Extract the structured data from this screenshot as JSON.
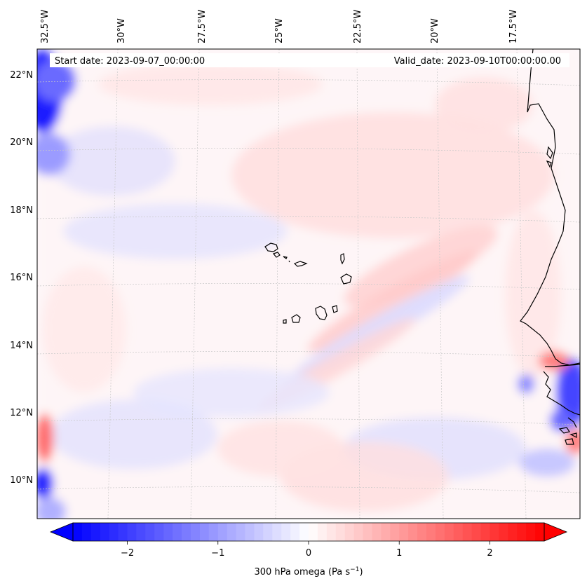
{
  "header": {
    "start_text": "Start date: 2023-09-07_00:00:00",
    "valid_text": "Valid_date: 2023-09-10T00:00:00.00"
  },
  "map": {
    "projection": "lambert-conformal",
    "lon_range_deg": [
      -33.0,
      -15.5
    ],
    "lat_range_deg": [
      8.8,
      22.7
    ],
    "field": "300 hPa omega",
    "colormap": "bwr",
    "gridlines": true
  },
  "axes": {
    "lon_ticks": [
      {
        "value": -32.5,
        "label": "32.5°W"
      },
      {
        "value": -30.0,
        "label": "30°W"
      },
      {
        "value": -27.5,
        "label": "27.5°W"
      },
      {
        "value": -25.0,
        "label": "25°W"
      },
      {
        "value": -22.5,
        "label": "22.5°W"
      },
      {
        "value": -20.0,
        "label": "20°W"
      },
      {
        "value": -17.5,
        "label": "17.5°W"
      }
    ],
    "lat_ticks": [
      {
        "value": 22,
        "label": "22°N"
      },
      {
        "value": 20,
        "label": "20°N"
      },
      {
        "value": 18,
        "label": "18°N"
      },
      {
        "value": 16,
        "label": "16°N"
      },
      {
        "value": 14,
        "label": "14°N"
      },
      {
        "value": 12,
        "label": "12°N"
      },
      {
        "value": 10,
        "label": "10°N"
      }
    ]
  },
  "colorbar": {
    "min": -2.6,
    "max": 2.6,
    "ticks": [
      {
        "value": -2,
        "label": "−2"
      },
      {
        "value": -1,
        "label": "−1"
      },
      {
        "value": 0,
        "label": "0"
      },
      {
        "value": 1,
        "label": "1"
      },
      {
        "value": 2,
        "label": "2"
      }
    ],
    "label_main": "300 hPa omega (Pa s",
    "label_sup": "−1",
    "label_close": ")",
    "extend": "both",
    "colors": {
      "negative": "#0000ff",
      "zero": "#ffffff",
      "positive": "#ff0000"
    }
  }
}
